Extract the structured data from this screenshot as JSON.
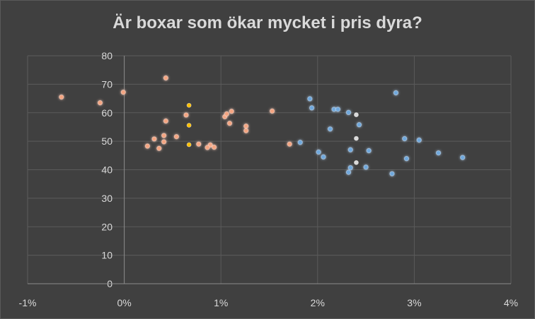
{
  "chart_data": {
    "type": "scatter",
    "title": "Är boxar som ökar mycket i pris dyra?",
    "xlabel": "",
    "ylabel": "",
    "xlim": [
      -1,
      4
    ],
    "ylim": [
      0,
      80
    ],
    "x_ticks": [
      -1,
      0,
      1,
      2,
      3,
      4
    ],
    "x_tick_labels": [
      "-1%",
      "0%",
      "1%",
      "2%",
      "3%",
      "4%"
    ],
    "y_ticks": [
      0,
      10,
      20,
      30,
      40,
      50,
      60,
      70,
      80
    ],
    "y_tick_labels": [
      "0",
      "10",
      "20",
      "30",
      "40",
      "50",
      "60",
      "70",
      "80"
    ],
    "grid": true,
    "legend": "none",
    "series": [
      {
        "color": "#f4a582",
        "points": [
          [
            -0.65,
            65.5
          ],
          [
            -0.25,
            63.5
          ],
          [
            -0.01,
            67.2
          ],
          [
            0.43,
            72.2
          ],
          [
            0.43,
            57.1
          ],
          [
            0.64,
            59.2
          ],
          [
            0.41,
            52.0
          ],
          [
            0.54,
            51.6
          ],
          [
            0.31,
            50.8
          ],
          [
            0.41,
            49.8
          ],
          [
            0.24,
            48.3
          ],
          [
            0.36,
            47.5
          ],
          [
            0.77,
            49.0
          ],
          [
            0.89,
            48.7
          ],
          [
            0.86,
            47.8
          ],
          [
            0.93,
            47.9
          ],
          [
            1.04,
            58.6
          ],
          [
            1.06,
            59.6
          ],
          [
            1.11,
            60.5
          ],
          [
            1.09,
            56.3
          ],
          [
            1.26,
            55.3
          ],
          [
            1.26,
            53.7
          ],
          [
            1.53,
            60.6
          ],
          [
            1.71,
            49.0
          ]
        ]
      },
      {
        "color": "#6fa8dc",
        "points": [
          [
            1.82,
            49.6
          ],
          [
            1.92,
            64.9
          ],
          [
            1.94,
            61.7
          ],
          [
            2.01,
            46.2
          ],
          [
            2.06,
            44.5
          ],
          [
            2.13,
            54.3
          ],
          [
            2.17,
            61.2
          ],
          [
            2.21,
            61.2
          ],
          [
            2.32,
            60.1
          ],
          [
            2.32,
            39.1
          ],
          [
            2.34,
            40.7
          ],
          [
            2.34,
            47.0
          ],
          [
            2.43,
            55.8
          ],
          [
            2.5,
            40.9
          ],
          [
            2.53,
            46.7
          ],
          [
            2.77,
            38.6
          ],
          [
            2.81,
            67.0
          ],
          [
            2.9,
            50.9
          ],
          [
            2.92,
            43.9
          ],
          [
            3.05,
            50.4
          ],
          [
            3.25,
            45.9
          ],
          [
            3.5,
            44.3
          ]
        ]
      }
    ],
    "range_bars": [
      {
        "color": "#ffc000",
        "x": 0.67,
        "low": 48.8,
        "mid": 55.6,
        "high": 62.6
      },
      {
        "color": "#d9d9d9",
        "x": 2.4,
        "low": 42.5,
        "mid": 51.0,
        "high": 59.3
      }
    ]
  }
}
